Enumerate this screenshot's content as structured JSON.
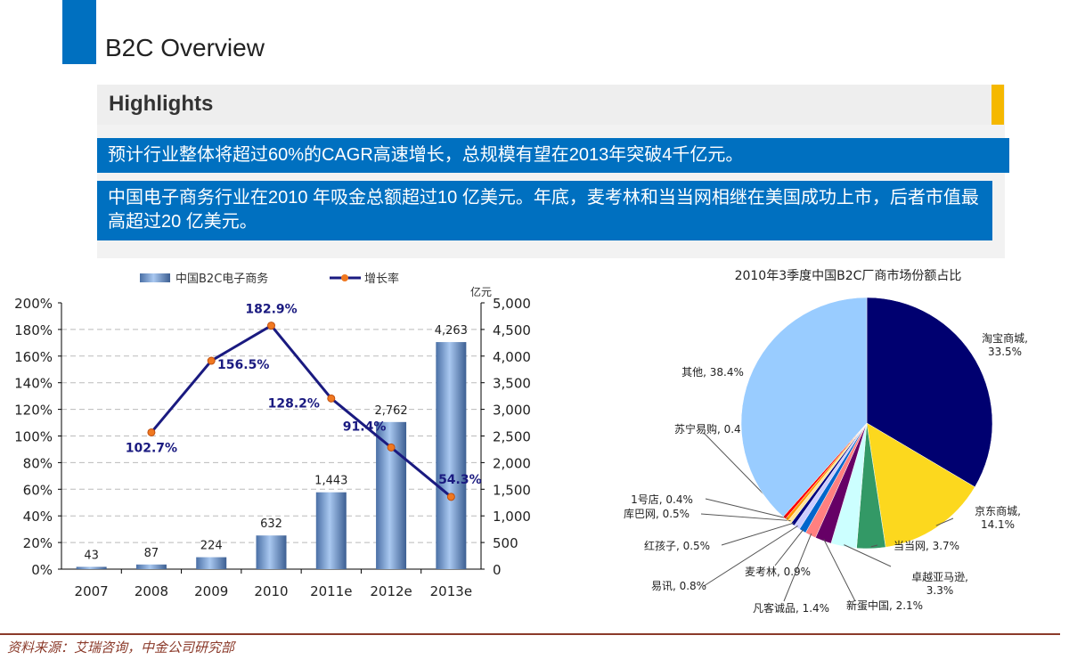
{
  "header": {
    "title": "B2C Overview",
    "highlights": "Highlights"
  },
  "bullets": [
    "预计行业整体将超过60%的CAGR高速增长，总规模有望在2013年突破4千亿元。",
    "中国电子商务行业在2010 年吸金总额超过10 亿美元。年底，麦考林和当当网相继在美国成功上市，后者市值最高超过20 亿美元。"
  ],
  "colors": {
    "accent": "#0070c0",
    "highlight_bar": "#f5b800",
    "line": "#1a1a80",
    "marker": "#f07820"
  },
  "chart_data": [
    {
      "type": "bar+line",
      "categories": [
        "2007",
        "2008",
        "2009",
        "2010",
        "2011e",
        "2012e",
        "2013e"
      ],
      "series": [
        {
          "name": "中国B2C电子商务",
          "type": "bar",
          "axis": "right",
          "values": [
            43,
            87,
            224,
            632,
            1443,
            2762,
            4263
          ],
          "labels": [
            "43",
            "87",
            "224",
            "632",
            "1,443",
            "2,762",
            "4,263"
          ]
        },
        {
          "name": "增长率",
          "type": "line",
          "axis": "left",
          "values": [
            null,
            102.7,
            156.5,
            182.9,
            128.2,
            91.4,
            54.3
          ],
          "labels": [
            "",
            "102.7%",
            "156.5%",
            "182.9%",
            "128.2%",
            "91.4%",
            "54.3%"
          ]
        }
      ],
      "left_axis": {
        "ylim": [
          0,
          200
        ],
        "ticks": [
          "0%",
          "20%",
          "40%",
          "60%",
          "80%",
          "100%",
          "120%",
          "140%",
          "160%",
          "180%",
          "200%"
        ]
      },
      "right_axis": {
        "unit": "亿元",
        "ylim": [
          0,
          5000
        ],
        "ticks": [
          "0",
          "500",
          "1,000",
          "1,500",
          "2,000",
          "2,500",
          "3,000",
          "3,500",
          "4,000",
          "4,500",
          "5,000"
        ]
      },
      "grid": true,
      "legend": "top"
    },
    {
      "type": "pie",
      "title": "2010年3季度中国B2C厂商市场份额占比",
      "slices": [
        {
          "name": "淘宝商城",
          "value": 33.5,
          "color": "#000070"
        },
        {
          "name": "京东商城",
          "value": 14.1,
          "color": "#fcd81e"
        },
        {
          "name": "当当网",
          "value": 3.7,
          "color": "#339966"
        },
        {
          "name": "卓越亚马逊",
          "value": 3.3,
          "color": "#ccffff"
        },
        {
          "name": "新蛋中国",
          "value": 2.1,
          "color": "#660066"
        },
        {
          "name": "凡客诚品",
          "value": 1.4,
          "color": "#ff8080"
        },
        {
          "name": "麦考林",
          "value": 0.9,
          "color": "#0066cc"
        },
        {
          "name": "易讯",
          "value": 0.8,
          "color": "#ccccff"
        },
        {
          "name": "红孩子",
          "value": 0.5,
          "color": "#000080"
        },
        {
          "name": "库巴网",
          "value": 0.5,
          "color": "#ffe699"
        },
        {
          "name": "1号店",
          "value": 0.4,
          "color": "#ff9900"
        },
        {
          "name": "苏宁易购",
          "value": 0.4,
          "color": "#ff0000"
        },
        {
          "name": "其他",
          "value": 38.4,
          "color": "#99ccff"
        }
      ]
    }
  ],
  "footer": {
    "source": "资料来源：艾瑞咨询，中金公司研究部"
  }
}
